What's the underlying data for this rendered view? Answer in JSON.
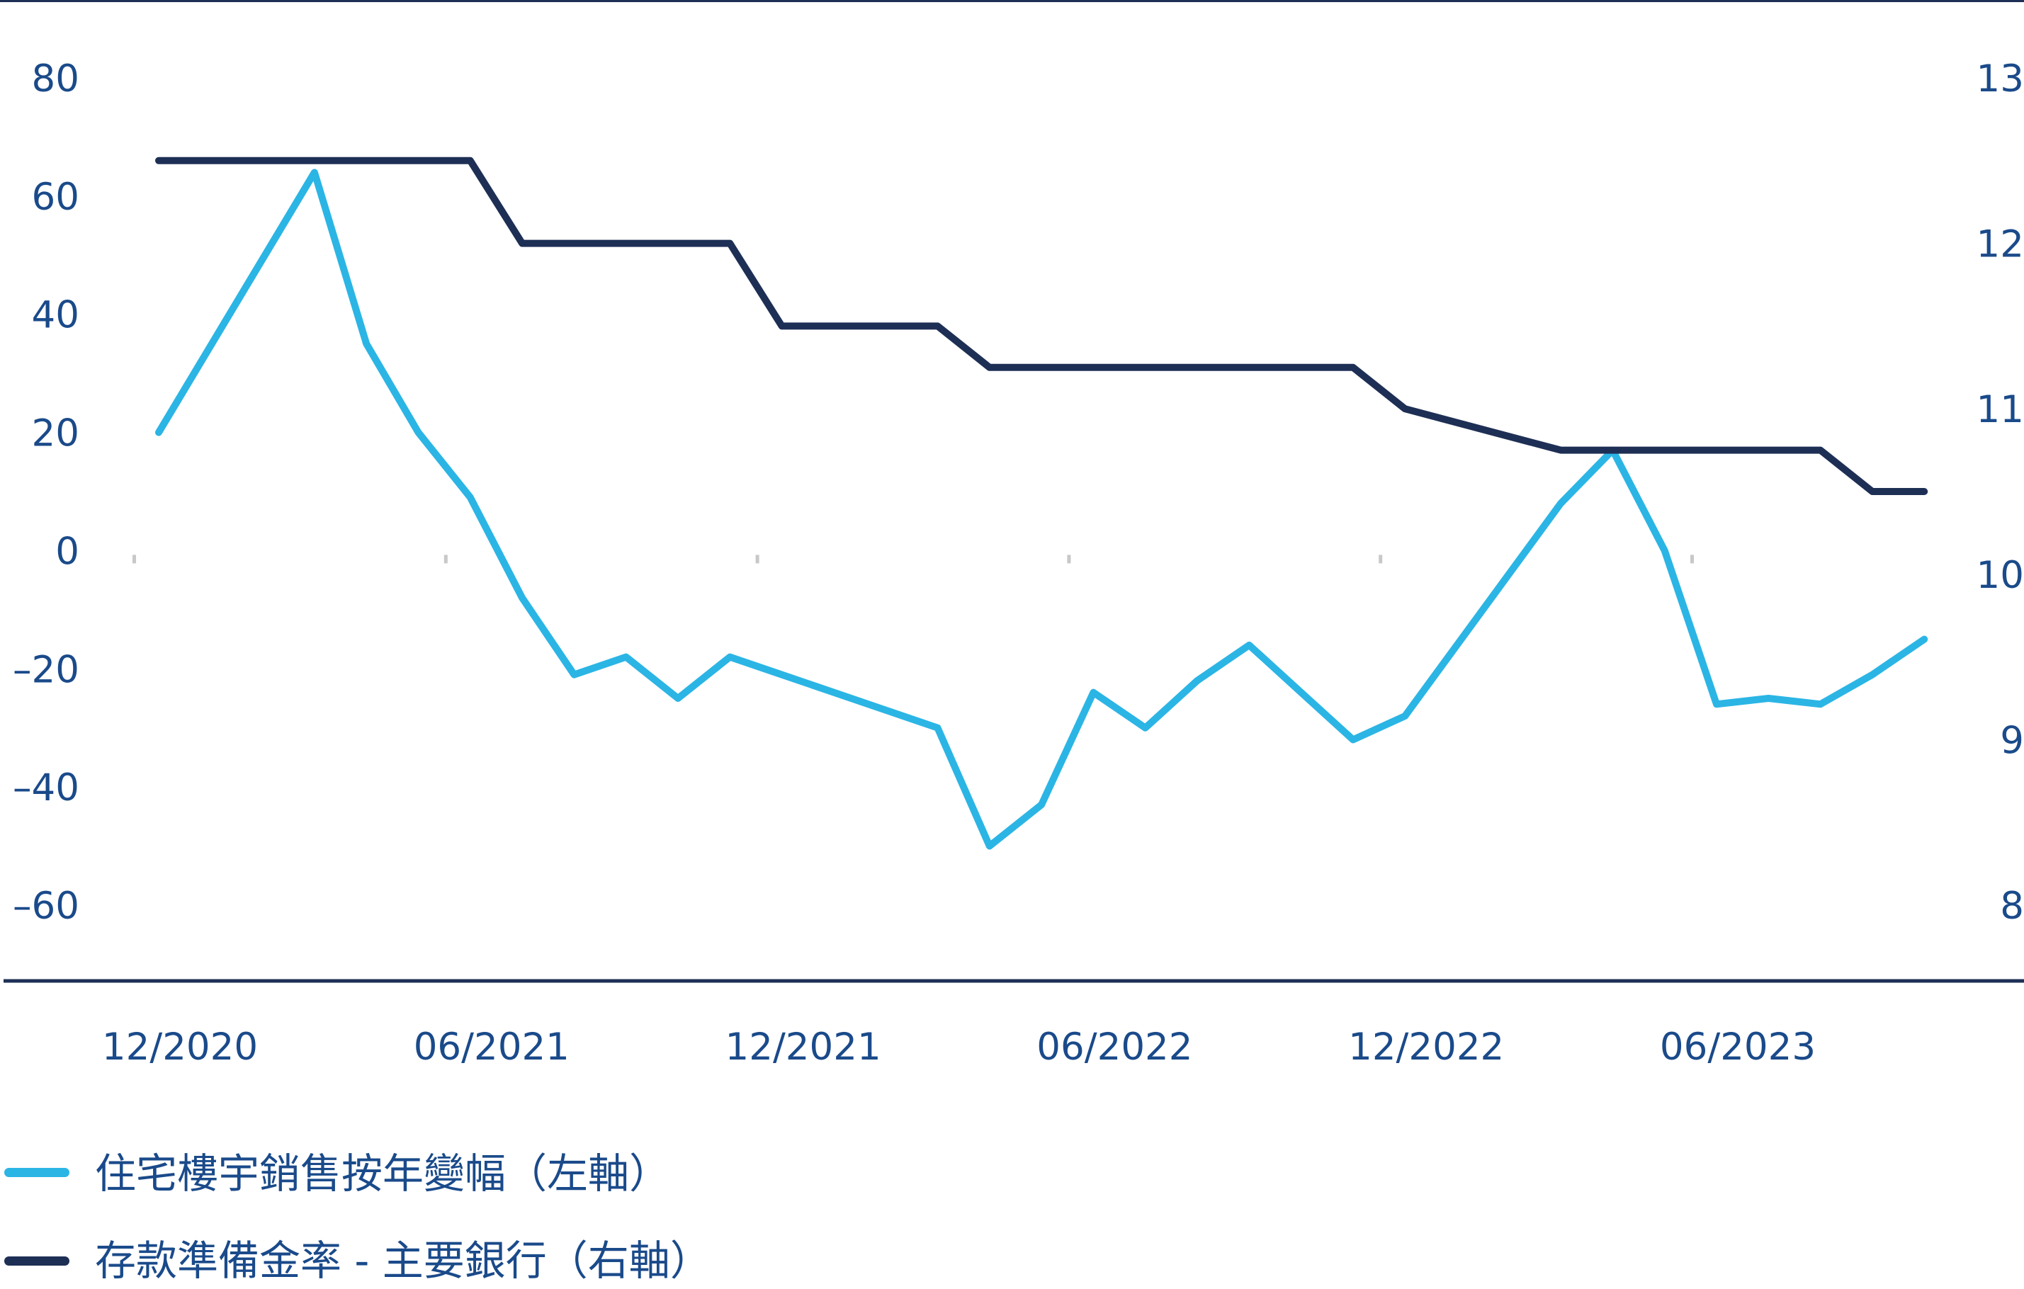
{
  "chart_data": {
    "type": "line",
    "x_tick_labels": [
      "12/2020",
      "06/2021",
      "12/2021",
      "06/2022",
      "12/2022",
      "06/2023"
    ],
    "x": [
      "12/2020",
      "01/2021",
      "02/2021",
      "03/2021",
      "04/2021",
      "05/2021",
      "06/2021",
      "07/2021",
      "08/2021",
      "09/2021",
      "10/2021",
      "11/2021",
      "12/2021",
      "01/2022",
      "02/2022",
      "03/2022",
      "04/2022",
      "05/2022",
      "06/2022",
      "07/2022",
      "08/2022",
      "09/2022",
      "10/2022",
      "11/2022",
      "12/2022",
      "01/2023",
      "02/2023",
      "03/2023",
      "04/2023",
      "05/2023",
      "06/2023",
      "07/2023",
      "08/2023",
      "09/2023",
      "10/2023"
    ],
    "left_axis": {
      "ylim": [
        -60,
        80
      ],
      "ticks": [
        "80",
        "60",
        "40",
        "20",
        "0",
        "–20",
        "–40",
        "–60"
      ]
    },
    "right_axis": {
      "ylim": [
        8,
        13
      ],
      "ticks": [
        "13",
        "12",
        "11",
        "10",
        "9",
        "8"
      ]
    },
    "series": [
      {
        "name": "住宅樓宇銷售按年變幅（左軸）",
        "axis": "left",
        "color": "#2bb5e5",
        "values": [
          20,
          null,
          null,
          64,
          35,
          20,
          9,
          -8,
          -21,
          -18,
          -25,
          -18,
          -21,
          null,
          null,
          -30,
          -50,
          -43,
          -24,
          -30,
          -22,
          -16,
          -24,
          -32,
          -28,
          null,
          null,
          8,
          17,
          0,
          -26,
          -25,
          -26,
          -21,
          -15
        ]
      },
      {
        "name": "存款準備金率 - 主要銀行（右軸）",
        "axis": "right",
        "color": "#1e2f55",
        "values": [
          12.5,
          12.5,
          12.5,
          12.5,
          12.5,
          12.5,
          12.5,
          12,
          12,
          12,
          12,
          12,
          11.5,
          11.5,
          11.5,
          11.5,
          11.25,
          11.25,
          11.25,
          11.25,
          11.25,
          11.25,
          11.25,
          11.25,
          11,
          null,
          null,
          10.75,
          10.75,
          10.75,
          10.75,
          10.75,
          10.75,
          10.5,
          10.5
        ]
      }
    ]
  }
}
